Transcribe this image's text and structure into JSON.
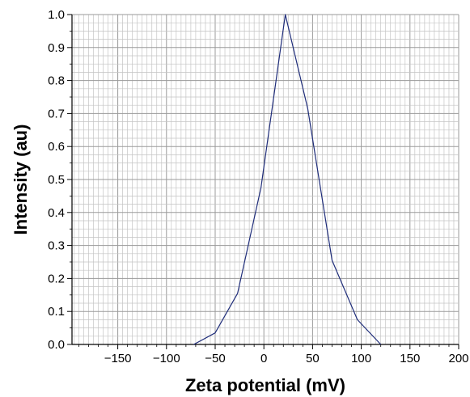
{
  "chart_data": {
    "type": "line",
    "title": "",
    "xlabel": "Zeta potential (mV)",
    "ylabel": "Intensity (au)",
    "xlim": [
      -197,
      200
    ],
    "ylim": [
      0.0,
      1.0
    ],
    "grid": true,
    "x_ticks": [
      -150,
      -100,
      -50,
      0,
      50,
      100,
      150,
      200
    ],
    "x_tick_labels": [
      "−150",
      "−100",
      "−50",
      "0",
      "50",
      "100",
      "150",
      "200"
    ],
    "y_ticks": [
      0.0,
      0.1,
      0.2,
      0.3,
      0.4,
      0.5,
      0.6,
      0.7,
      0.8,
      0.9,
      1.0
    ],
    "y_tick_labels": [
      "0.0",
      "0.1",
      "0.2",
      "0.3",
      "0.4",
      "0.5",
      "0.6",
      "0.7",
      "0.8",
      "0.9",
      "1.0"
    ],
    "series": [
      {
        "color": "#1f2d7a",
        "x": [
          -72,
          -50,
          -27,
          -3,
          22,
          45,
          70,
          96,
          120
        ],
        "y": [
          0.0,
          0.035,
          0.155,
          0.475,
          1.0,
          0.715,
          0.255,
          0.075,
          0.0
        ]
      }
    ]
  }
}
